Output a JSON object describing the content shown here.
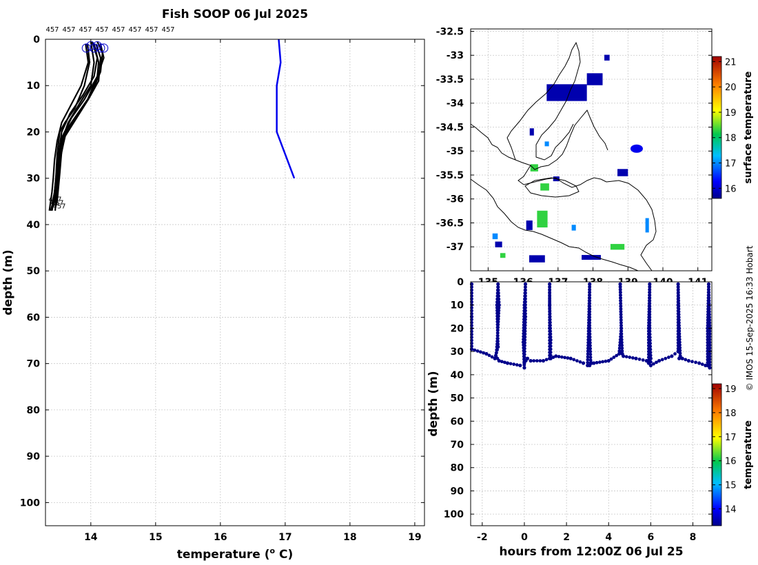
{
  "colors": {
    "axis": "#000000",
    "grid": "#c8c8c8",
    "profiles": "#000000",
    "surface_profile": "#0000ee",
    "markers": "#0000cc",
    "track": "#00008b"
  },
  "credit": "© IMOS 15-Sep-2025 16:33 Hobart",
  "chart_data": [
    {
      "id": "profiles",
      "type": "line",
      "title": "Fish SOOP 06 Jul 2025",
      "xlabel": "temperature (",
      "xlabel_sup": "o",
      "xlabel_end": " C)",
      "ylabel": "depth (m)",
      "xlim": [
        13.3,
        19.15
      ],
      "ylim": [
        0,
        105
      ],
      "y_reversed": true,
      "xticks": [
        14,
        15,
        16,
        17,
        18,
        19
      ],
      "yticks": [
        0,
        10,
        20,
        30,
        40,
        50,
        60,
        70,
        80,
        90,
        100
      ],
      "top_labels": [
        "457",
        "457",
        "457",
        "457",
        "457",
        "457",
        "457",
        "457"
      ],
      "end_labels": [
        "457",
        "457",
        "457"
      ],
      "series": [
        {
          "name": "profile-1",
          "x": [
            13.95,
            13.98,
            13.9,
            13.75,
            13.6,
            13.52,
            13.48,
            13.46,
            13.44,
            13.42,
            13.38
          ],
          "y": [
            1,
            5,
            10,
            15,
            18,
            20,
            25,
            30,
            33,
            35,
            37
          ]
        },
        {
          "name": "profile-2",
          "x": [
            14.0,
            14.05,
            14.0,
            13.82,
            13.65,
            13.55,
            13.5,
            13.48,
            13.46,
            13.44,
            13.42
          ],
          "y": [
            0.5,
            5,
            10,
            14,
            18,
            22,
            26,
            30,
            33,
            35,
            36
          ]
        },
        {
          "name": "profile-3",
          "x": [
            14.05,
            14.12,
            14.1,
            13.95,
            13.75,
            13.6,
            13.52,
            13.5,
            13.48,
            13.46,
            13.45
          ],
          "y": [
            1,
            5,
            8,
            13,
            17,
            20,
            25,
            30,
            33,
            35,
            37
          ]
        },
        {
          "name": "profile-4",
          "x": [
            14.1,
            14.18,
            14.15,
            14.0,
            13.8,
            13.62,
            13.55,
            13.52,
            13.5,
            13.48,
            13.46
          ],
          "y": [
            0.5,
            3,
            7,
            12,
            16,
            20,
            24,
            29,
            32,
            35,
            36
          ]
        },
        {
          "name": "profile-5",
          "x": [
            14.15,
            14.2,
            14.1,
            13.9,
            13.7,
            13.56,
            13.5,
            13.47,
            13.45,
            13.43,
            13.4
          ],
          "y": [
            1,
            4,
            8,
            13,
            17,
            21,
            25,
            29,
            32,
            35,
            37
          ]
        },
        {
          "name": "profile-6",
          "x": [
            13.92,
            13.96,
            13.85,
            13.7,
            13.55,
            13.48,
            13.44,
            13.42,
            13.4,
            13.38,
            13.36
          ],
          "y": [
            1,
            5,
            10,
            14,
            18,
            22,
            26,
            30,
            33,
            35,
            37
          ]
        },
        {
          "name": "profile-7",
          "x": [
            14.02,
            14.1,
            14.05,
            13.88,
            13.68,
            13.55,
            13.5,
            13.46,
            13.44,
            13.41,
            13.4
          ],
          "y": [
            0.5,
            4,
            8,
            12,
            16,
            20,
            25,
            30,
            33,
            35,
            36.5
          ]
        },
        {
          "name": "profile-8",
          "x": [
            14.08,
            14.15,
            14.12,
            13.96,
            13.78,
            13.6,
            13.54,
            13.5,
            13.47,
            13.45,
            13.42
          ],
          "y": [
            1,
            4,
            9,
            13,
            17,
            21,
            25,
            29,
            32,
            34,
            36
          ]
        },
        {
          "name": "surface-profile",
          "x": [
            16.9,
            16.93,
            16.87,
            16.87,
            17.14
          ],
          "y": [
            0,
            5,
            10,
            20,
            30
          ]
        }
      ],
      "markers": {
        "x": [
          13.93,
          14.0,
          14.05,
          14.1,
          14.15,
          14.2
        ],
        "y": [
          1,
          0.5,
          1,
          0.5,
          1,
          1
        ]
      }
    },
    {
      "id": "map",
      "type": "heatmap",
      "colorbar_label": "surface temperature",
      "colorbar_ticks": [
        16,
        17,
        18,
        19,
        20,
        21
      ],
      "clim": [
        15.6,
        21.2
      ],
      "lat_ticks": [
        -32.5,
        -33,
        -33.5,
        -34,
        -34.5,
        -35,
        -35.5,
        -36,
        -36.5,
        -37
      ],
      "lat_labels": [
        "-32.5",
        "-33",
        "-33.5",
        "-34",
        "-34.5",
        "-35",
        "-35.5",
        "-36",
        "-36.5",
        "-37"
      ],
      "lat_range": [
        -37.5,
        -32.45
      ],
      "lon_ticks": [
        135,
        136,
        137,
        138,
        139,
        140,
        141
      ],
      "lon_labels": [
        "135",
        "136",
        "137",
        "138",
        "139",
        "140",
        "141"
      ],
      "lon_range": [
        134.5,
        141.4
      ],
      "patches": [
        {
          "lon": 137.25,
          "lat": -33.78,
          "w": 1.15,
          "h": 0.35,
          "value": 15.8
        },
        {
          "lon": 138.05,
          "lat": -33.5,
          "w": 0.45,
          "h": 0.25,
          "value": 15.8
        },
        {
          "lon": 138.4,
          "lat": -33.05,
          "w": 0.15,
          "h": 0.12,
          "value": 15.8
        },
        {
          "lon": 136.25,
          "lat": -34.6,
          "w": 0.12,
          "h": 0.15,
          "value": 15.8
        },
        {
          "lon": 136.68,
          "lat": -34.85,
          "w": 0.12,
          "h": 0.1,
          "value": 17.0
        },
        {
          "lon": 136.32,
          "lat": -35.35,
          "w": 0.22,
          "h": 0.15,
          "value": 18.3
        },
        {
          "lon": 136.62,
          "lat": -35.75,
          "w": 0.25,
          "h": 0.15,
          "value": 18.3
        },
        {
          "lon": 136.55,
          "lat": -36.42,
          "w": 0.3,
          "h": 0.35,
          "value": 18.3
        },
        {
          "lon": 136.18,
          "lat": -36.55,
          "w": 0.18,
          "h": 0.2,
          "value": 15.8
        },
        {
          "lon": 135.3,
          "lat": -36.95,
          "w": 0.2,
          "h": 0.12,
          "value": 15.8
        },
        {
          "lon": 136.4,
          "lat": -37.25,
          "w": 0.45,
          "h": 0.15,
          "value": 15.8
        },
        {
          "lon": 137.95,
          "lat": -37.22,
          "w": 0.55,
          "h": 0.1,
          "value": 15.8
        },
        {
          "lon": 135.2,
          "lat": -36.78,
          "w": 0.15,
          "h": 0.12,
          "value": 17.0
        },
        {
          "lon": 136.95,
          "lat": -35.58,
          "w": 0.18,
          "h": 0.1,
          "value": 15.8
        },
        {
          "lon": 138.85,
          "lat": -35.45,
          "w": 0.3,
          "h": 0.15,
          "value": 15.8
        },
        {
          "lon": 139.55,
          "lat": -36.55,
          "w": 0.1,
          "h": 0.3,
          "value": 17.0
        },
        {
          "lon": 138.7,
          "lat": -37.0,
          "w": 0.4,
          "h": 0.12,
          "value": 18.3
        },
        {
          "lon": 137.45,
          "lat": -36.6,
          "w": 0.12,
          "h": 0.12,
          "value": 17.0
        },
        {
          "lon": 135.42,
          "lat": -37.18,
          "w": 0.15,
          "h": 0.1,
          "value": 18.3
        }
      ],
      "ship_point": {
        "lon": 139.25,
        "lat": -34.95
      }
    },
    {
      "id": "section",
      "type": "scatter",
      "xlabel": "hours from 12:00Z 06 Jul 25",
      "ylabel": "depth (m)",
      "xlim": [
        -2.55,
        8.9
      ],
      "ylim": [
        0,
        105
      ],
      "y_reversed": true,
      "xticks": [
        -2,
        0,
        2,
        4,
        6,
        8
      ],
      "yticks": [
        0,
        10,
        20,
        30,
        40,
        50,
        60,
        70,
        80,
        90,
        100
      ],
      "colorbar_label": "temperature",
      "colorbar_ticks": [
        14,
        15,
        16,
        17,
        18,
        19
      ],
      "clim": [
        13.3,
        19.2
      ],
      "x": [
        -2.5,
        -2.5,
        -2.5,
        -1.8,
        -1.4,
        -1.25,
        -1.3,
        -1.25,
        -1.2,
        -1.3,
        -1.35,
        -1.2,
        -0.8,
        -0.2,
        0.0,
        -0.05,
        0.0,
        0.05,
        0.05,
        0.0,
        0.15,
        0.3,
        0.9,
        1.2,
        1.2,
        1.2,
        1.2,
        1.25,
        1.25,
        1.5,
        2.2,
        2.8,
        3.0,
        3.05,
        3.1,
        3.1,
        3.15,
        3.1,
        3.2,
        3.3,
        4.0,
        4.5,
        4.6,
        4.55,
        4.6,
        4.65,
        4.6,
        4.7,
        5.3,
        5.8,
        5.9,
        5.9,
        5.95,
        5.95,
        6.0,
        6.0,
        6.4,
        7.0,
        7.3,
        7.3,
        7.3,
        7.35,
        7.4,
        7.35,
        7.5,
        7.8,
        8.3,
        8.6,
        8.7,
        8.7,
        8.75,
        8.8,
        8.8
      ],
      "y": [
        1,
        15,
        29,
        31,
        33,
        28,
        10,
        1,
        10,
        28,
        32,
        34,
        35,
        36,
        37,
        26,
        10,
        1,
        15,
        35,
        33,
        34,
        34,
        33,
        20,
        1,
        10,
        25,
        33,
        32,
        33,
        35,
        36,
        20,
        1,
        20,
        35,
        36,
        35,
        35,
        34,
        31,
        20,
        1,
        20,
        31,
        30,
        32,
        33,
        34,
        35,
        20,
        1,
        20,
        33,
        36,
        34,
        32,
        30,
        10,
        1,
        20,
        32,
        33,
        33,
        34,
        35,
        36,
        36,
        20,
        1,
        20,
        37
      ]
    }
  ]
}
